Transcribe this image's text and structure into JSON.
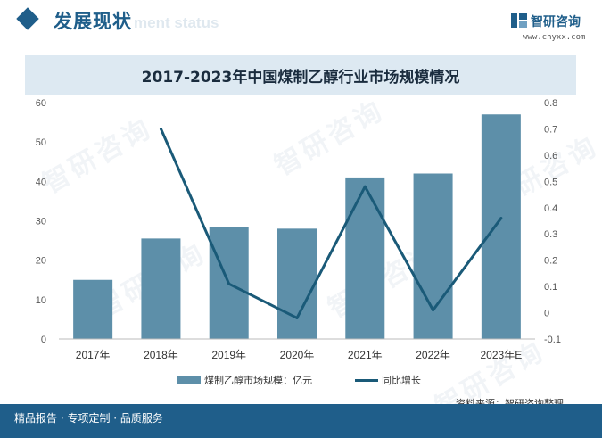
{
  "header": {
    "title": "发展现状",
    "watermark_text": "ment status"
  },
  "brand": {
    "name": "智研咨询",
    "url": "www.chyxx.com",
    "icon": "brand-logo-icon"
  },
  "watermark": {
    "text": "智研咨询"
  },
  "chart_data": {
    "type": "bar+line",
    "title": "2017-2023年中国煤制乙醇行业市场规模情况",
    "categories": [
      "2017年",
      "2018年",
      "2019年",
      "2020年",
      "2021年",
      "2022年",
      "2023年E"
    ],
    "series": [
      {
        "name": "煤制乙醇市场规模：亿元",
        "type": "bar",
        "axis": "left",
        "values": [
          15,
          25.5,
          28.5,
          28,
          41,
          42,
          57
        ],
        "color": "#5d8fa9"
      },
      {
        "name": "同比增长",
        "type": "line",
        "axis": "right",
        "values": [
          null,
          0.7,
          0.11,
          -0.02,
          0.48,
          0.01,
          0.36
        ],
        "color": "#1a5a78"
      }
    ],
    "y_left": {
      "min": 0,
      "max": 60,
      "step": 10,
      "ticks": [
        "0",
        "10",
        "20",
        "30",
        "40",
        "50",
        "60"
      ]
    },
    "y_right": {
      "min": -0.1,
      "max": 0.8,
      "step": 0.1,
      "ticks": [
        "-0.1",
        "0",
        "0.1",
        "0.2",
        "0.3",
        "0.4",
        "0.5",
        "0.6",
        "0.7",
        "0.8"
      ]
    },
    "grid": false,
    "legend_position": "bottom"
  },
  "source": "资料来源：智研咨询整理",
  "footer": {
    "text": "精品报告 · 专项定制 · 品质服务"
  }
}
